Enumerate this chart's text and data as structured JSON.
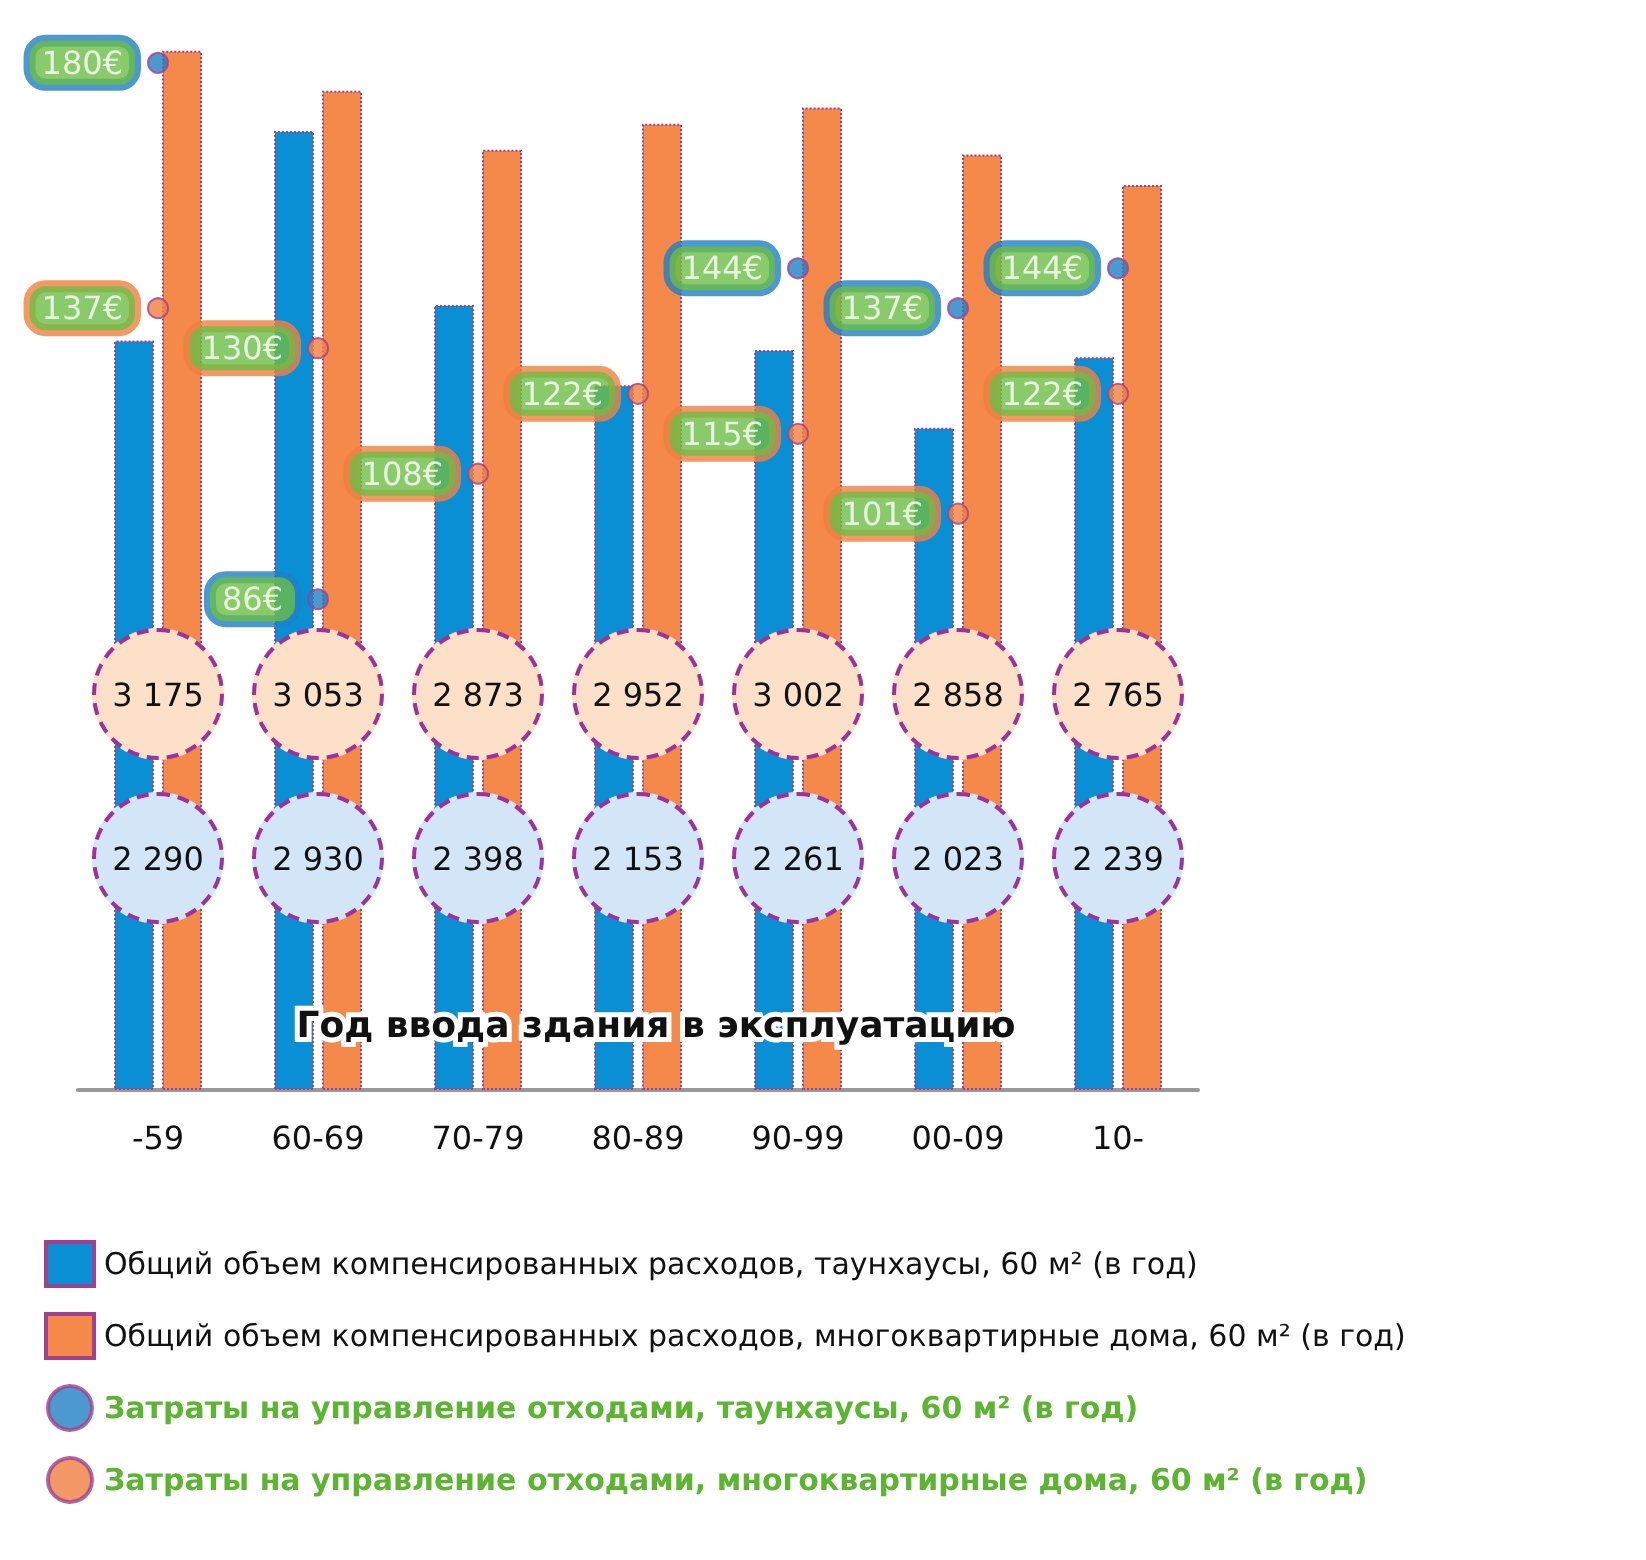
{
  "chart_data": {
    "type": "bar",
    "xlabel": "Год ввода здания в эксплуатацию",
    "categories": [
      "-59",
      "60-69",
      "70-79",
      "80-89",
      "90-99",
      "00-09",
      "10-"
    ],
    "legend": "bottom",
    "marker": "circle",
    "series": [
      {
        "name": "Общий объем компенсированных расходов, таунхаусы, 60 м² (в год)",
        "color": "#0a8fd4",
        "values": [
          2290,
          2930,
          2398,
          2153,
          2261,
          2023,
          2239
        ],
        "value_labels": [
          "2 290",
          "2 930",
          "2 398",
          "2 153",
          "2 261",
          "2 023",
          "2 239"
        ]
      },
      {
        "name": "Общий объем компенсированных расходов, многоквартирные дома, 60 м² (в год)",
        "color": "#f5894a",
        "values": [
          3175,
          3053,
          2873,
          2952,
          3002,
          2858,
          2765
        ],
        "value_labels": [
          "3 175",
          "3 053",
          "2 873",
          "2 952",
          "3 002",
          "2 858",
          "2 765"
        ]
      },
      {
        "name": "Затраты на управление отходами, таунхаусы, 60 м² (в год)",
        "type": "scatter",
        "axis": "y2",
        "color": "#1f7fc4",
        "values": [
          180,
          86,
          null,
          null,
          144,
          137,
          144
        ],
        "value_labels": [
          "180€",
          "86€",
          null,
          null,
          "144€",
          "137€",
          "144€"
        ]
      },
      {
        "name": "Затраты на управление отходами, многоквартирные дома, 60 м² (в год)",
        "type": "scatter",
        "axis": "y2",
        "color": "#f08040",
        "values": [
          137,
          130,
          108,
          122,
          115,
          101,
          122
        ],
        "value_labels": [
          "137€",
          "130€",
          "108€",
          "122€",
          "115€",
          "101€",
          "122€"
        ]
      }
    ]
  }
}
